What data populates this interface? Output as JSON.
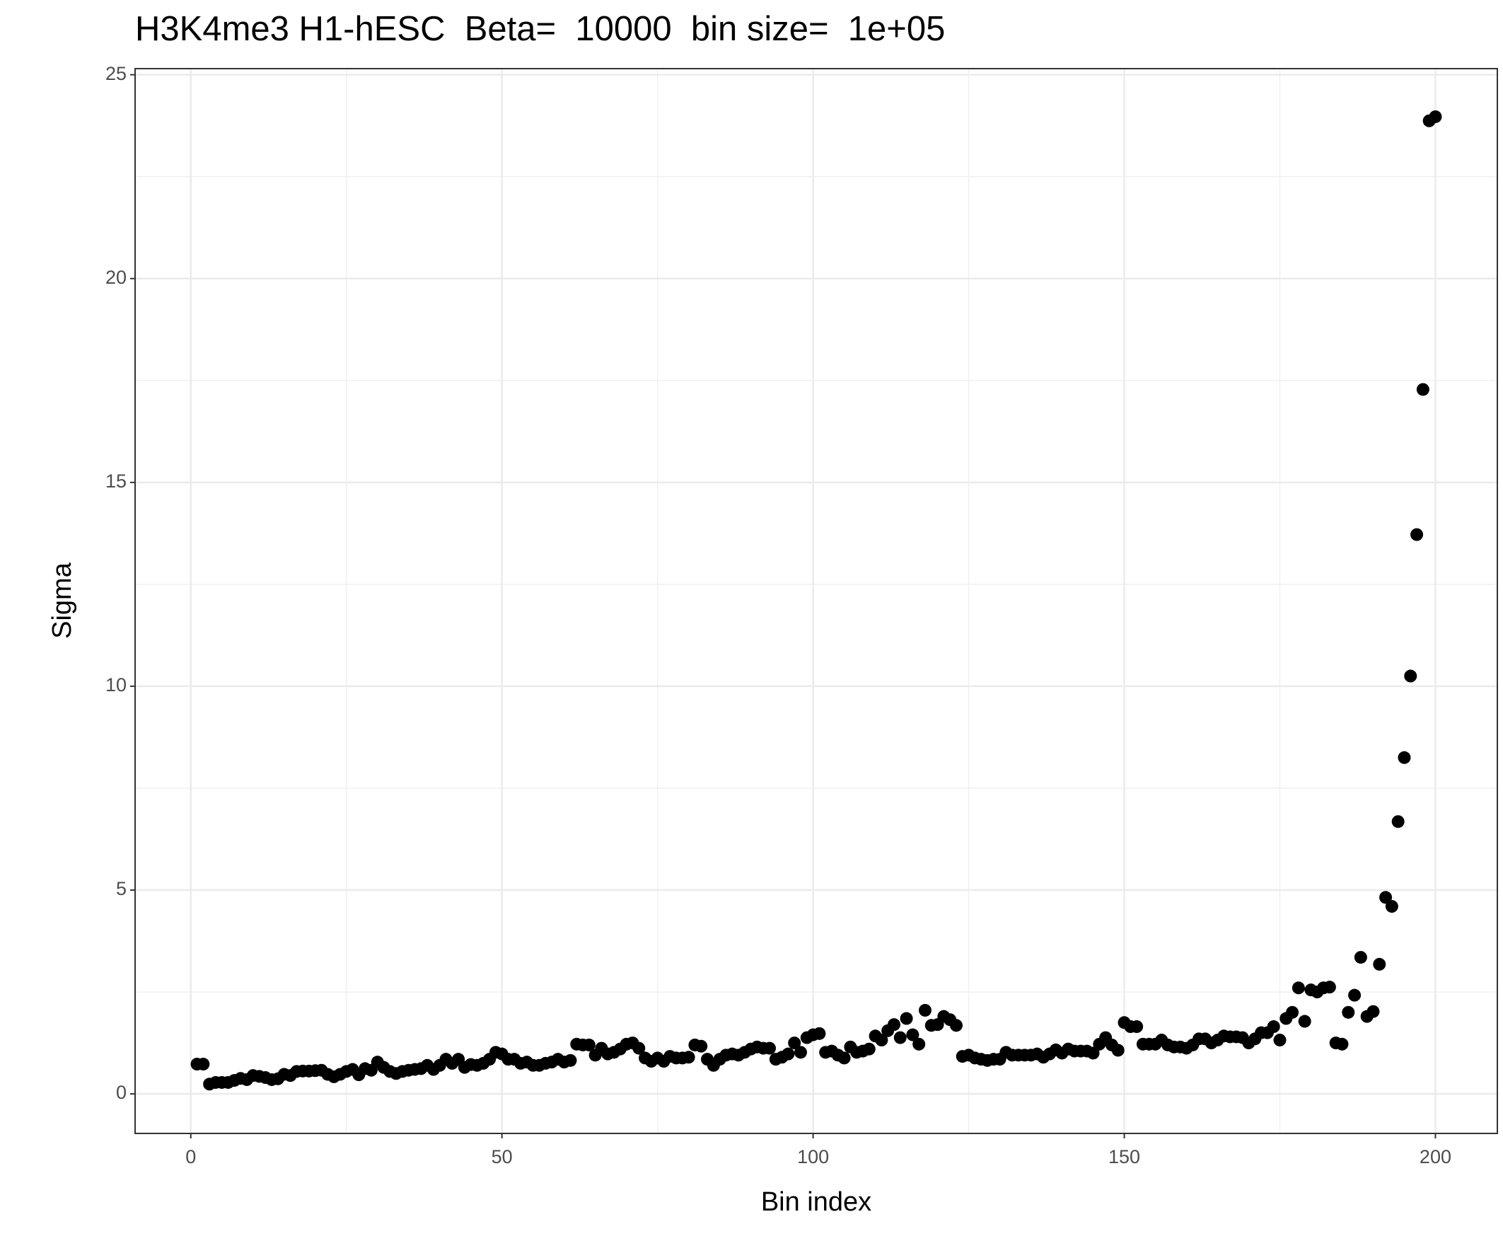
{
  "chart_data": {
    "type": "scatter",
    "title": "H3K4me3 H1-hESC  Beta=  10000  bin size=  1e+05",
    "x_label": "Bin index",
    "y_label": "Sigma",
    "xlim": [
      -8.95,
      209.95
    ],
    "ylim": [
      -0.97,
      25.15
    ],
    "xticks": [
      0,
      50,
      100,
      150,
      200
    ],
    "yticks": [
      0,
      5,
      10,
      15,
      20,
      25
    ],
    "grid": true,
    "series": [
      {
        "color": "#000000",
        "x": [
          1,
          2,
          3,
          4,
          5,
          6,
          7,
          8,
          9,
          10,
          11,
          12,
          13,
          14,
          15,
          16,
          17,
          18,
          19,
          20,
          21,
          22,
          23,
          24,
          25,
          26,
          27,
          28,
          29,
          30,
          31,
          32,
          33,
          34,
          35,
          36,
          37,
          38,
          39,
          40,
          41,
          42,
          43,
          44,
          45,
          46,
          47,
          48,
          49,
          50,
          51,
          52,
          53,
          54,
          55,
          56,
          57,
          58,
          59,
          60,
          61,
          62,
          63,
          64,
          65,
          66,
          67,
          68,
          69,
          70,
          71,
          72,
          73,
          74,
          75,
          76,
          77,
          78,
          79,
          80,
          81,
          82,
          83,
          84,
          85,
          86,
          87,
          88,
          89,
          90,
          91,
          92,
          93,
          94,
          95,
          96,
          97,
          98,
          99,
          100,
          101,
          102,
          103,
          104,
          105,
          106,
          107,
          108,
          109,
          110,
          111,
          112,
          113,
          114,
          115,
          116,
          117,
          118,
          119,
          120,
          121,
          122,
          123,
          124,
          125,
          126,
          127,
          128,
          129,
          130,
          131,
          132,
          133,
          134,
          135,
          136,
          137,
          138,
          139,
          140,
          141,
          142,
          143,
          144,
          145,
          146,
          147,
          148,
          149,
          150,
          151,
          152,
          153,
          154,
          155,
          156,
          157,
          158,
          159,
          160,
          161,
          162,
          163,
          164,
          165,
          166,
          167,
          168,
          169,
          170,
          171,
          172,
          173,
          174,
          175,
          176,
          177,
          178,
          179,
          180,
          181,
          182,
          183,
          184,
          185,
          186,
          187,
          188,
          189,
          190,
          191,
          192,
          193,
          194,
          195,
          196,
          197,
          198,
          199,
          200
        ],
        "values": [
          0.73,
          0.73,
          0.24,
          0.28,
          0.28,
          0.28,
          0.33,
          0.38,
          0.35,
          0.45,
          0.43,
          0.4,
          0.35,
          0.37,
          0.48,
          0.45,
          0.55,
          0.56,
          0.56,
          0.57,
          0.58,
          0.48,
          0.42,
          0.48,
          0.55,
          0.6,
          0.47,
          0.62,
          0.58,
          0.78,
          0.65,
          0.55,
          0.5,
          0.55,
          0.58,
          0.6,
          0.62,
          0.7,
          0.6,
          0.7,
          0.85,
          0.75,
          0.85,
          0.65,
          0.72,
          0.7,
          0.75,
          0.85,
          1.02,
          0.98,
          0.85,
          0.85,
          0.75,
          0.78,
          0.7,
          0.7,
          0.75,
          0.78,
          0.85,
          0.78,
          0.82,
          1.22,
          1.2,
          1.2,
          0.95,
          1.12,
          0.98,
          1.02,
          1.1,
          1.22,
          1.25,
          1.12,
          0.88,
          0.8,
          0.88,
          0.8,
          0.92,
          0.88,
          0.88,
          0.9,
          1.2,
          1.17,
          0.85,
          0.7,
          0.85,
          0.95,
          0.98,
          0.95,
          1.02,
          1.1,
          1.15,
          1.12,
          1.12,
          0.85,
          0.9,
          0.98,
          1.25,
          1.02,
          1.38,
          1.45,
          1.48,
          1.02,
          1.05,
          0.95,
          0.88,
          1.15,
          1.02,
          1.05,
          1.1,
          1.42,
          1.32,
          1.55,
          1.7,
          1.38,
          1.85,
          1.45,
          1.22,
          2.05,
          1.68,
          1.7,
          1.9,
          1.82,
          1.68,
          0.92,
          0.95,
          0.88,
          0.85,
          0.82,
          0.85,
          0.85,
          1.02,
          0.95,
          0.95,
          0.95,
          0.95,
          0.98,
          0.9,
          0.98,
          1.08,
          1.0,
          1.1,
          1.05,
          1.05,
          1.05,
          1.0,
          1.22,
          1.38,
          1.2,
          1.07,
          1.75,
          1.65,
          1.65,
          1.22,
          1.22,
          1.22,
          1.32,
          1.2,
          1.15,
          1.15,
          1.12,
          1.2,
          1.35,
          1.35,
          1.25,
          1.32,
          1.42,
          1.4,
          1.4,
          1.38,
          1.25,
          1.35,
          1.5,
          1.5,
          1.65,
          1.32,
          1.85,
          2.0,
          2.6,
          1.78,
          2.55,
          2.5,
          2.6,
          2.62,
          1.25,
          1.22,
          2.0,
          2.42,
          3.35,
          1.9,
          2.02,
          3.18,
          4.82,
          4.6,
          6.68,
          8.25,
          10.25,
          13.72,
          17.28,
          23.87,
          23.97
        ]
      }
    ]
  }
}
